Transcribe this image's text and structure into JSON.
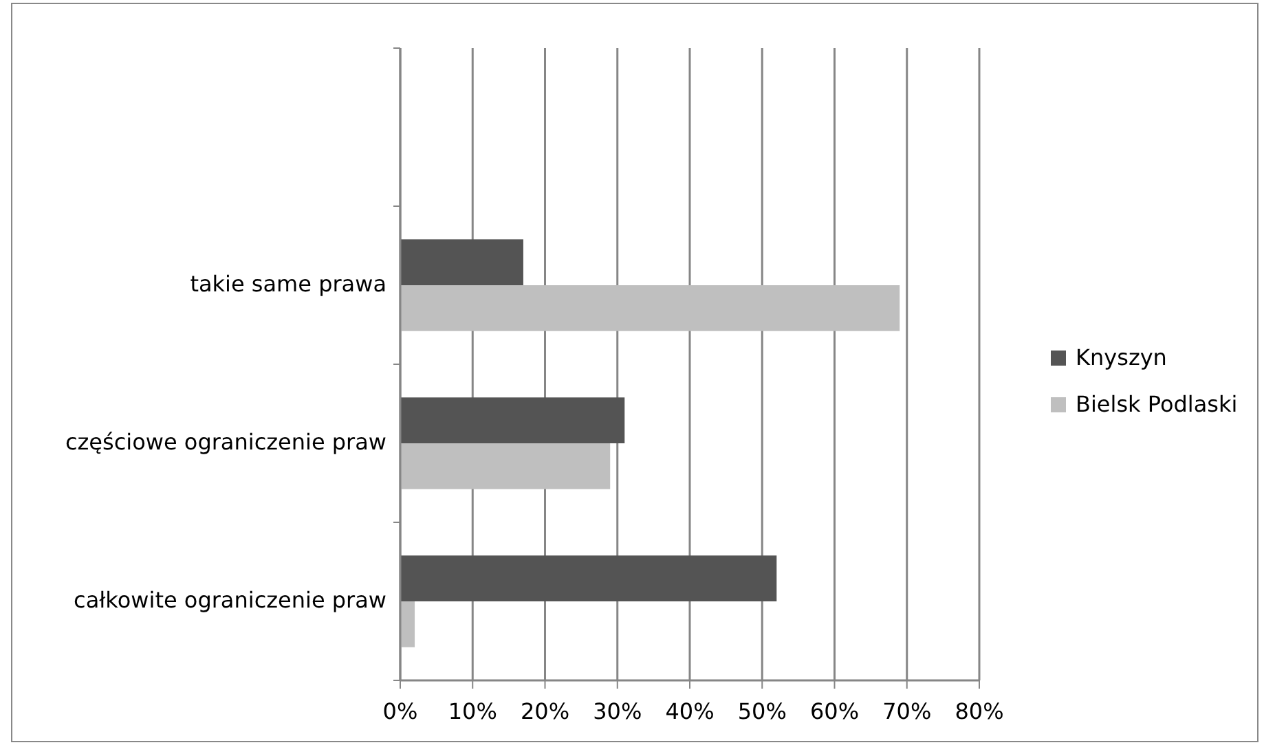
{
  "chart_data": {
    "type": "bar",
    "orientation": "horizontal",
    "categories": [
      null,
      "takie same prawa",
      "częściowe ograniczenie praw",
      "całkowite ograniczenie praw"
    ],
    "series": [
      {
        "name": "Knyszyn",
        "color": "#545454",
        "values": [
          null,
          17,
          31,
          52
        ]
      },
      {
        "name": "Bielsk Podlaski",
        "color": "#bfbfbf",
        "values": [
          null,
          69,
          29,
          2
        ]
      }
    ],
    "xlim": [
      0,
      80
    ],
    "xticks": [
      {
        "value": 0,
        "label": "0%"
      },
      {
        "value": 10,
        "label": "10%"
      },
      {
        "value": 20,
        "label": "20%"
      },
      {
        "value": 30,
        "label": "30%"
      },
      {
        "value": 40,
        "label": "40%"
      },
      {
        "value": 50,
        "label": "50%"
      },
      {
        "value": 60,
        "label": "60%"
      },
      {
        "value": 70,
        "label": "70%"
      },
      {
        "value": 80,
        "label": "80%"
      }
    ],
    "grid": "x",
    "legend": "right"
  }
}
